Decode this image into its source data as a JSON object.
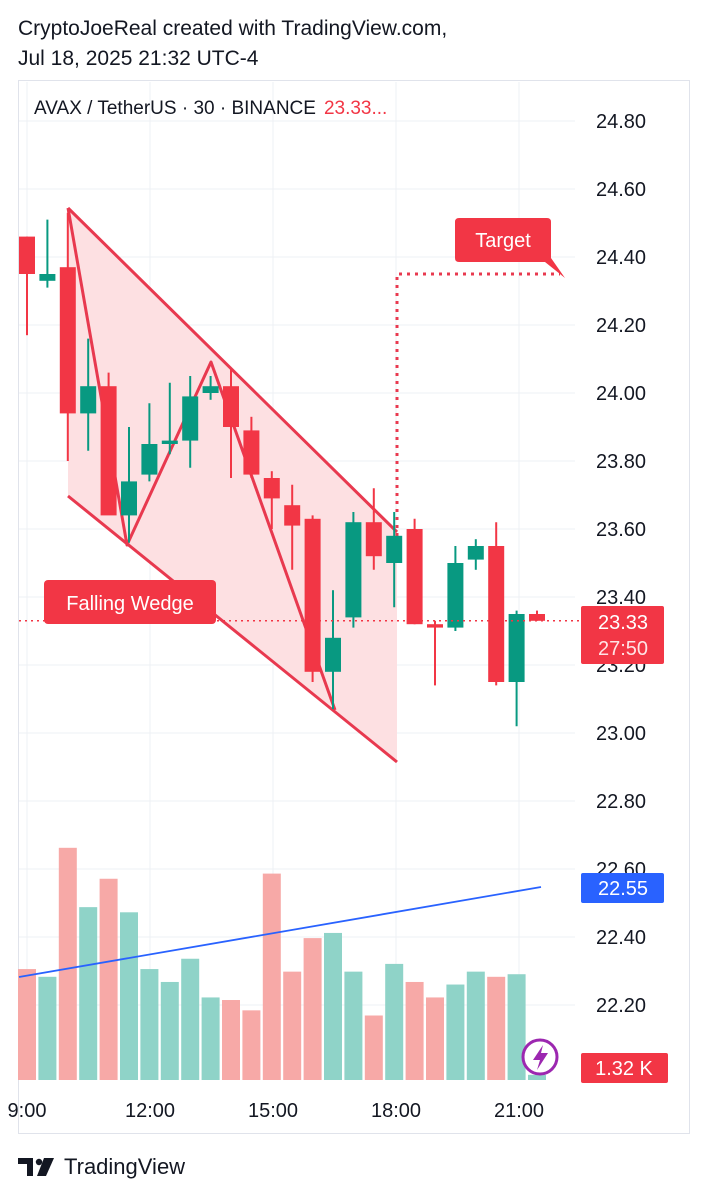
{
  "header": {
    "line1": "CryptoJoeReal created with TradingView.com,",
    "line2": "Jul 18, 2025 21:32 UTC-4"
  },
  "symbol_line": {
    "text": "AVAX / TetherUS · 30 · BINANCE",
    "price": "23.33..."
  },
  "footer": {
    "brand": "TradingView"
  },
  "colors": {
    "up": "#089981",
    "down": "#f23645",
    "up_volume": "#8fd3c8",
    "down_volume": "#f7a9a7",
    "wedge_fill": "#fde0e2",
    "wedge_line": "#e8394f",
    "ma_line": "#2962ff",
    "grid": "#eef0f4",
    "axis_text": "#131722"
  },
  "chart_data": {
    "type": "candlestick",
    "price_axis": {
      "ticks": [
        "24.80",
        "24.60",
        "24.40",
        "24.20",
        "24.00",
        "23.80",
        "23.60",
        "23.40",
        "23.20",
        "23.00",
        "22.80",
        "22.60",
        "22.40",
        "22.20"
      ],
      "range": [
        22.05,
        24.85
      ]
    },
    "time_axis": {
      "labels": [
        "9:00",
        "12:00",
        "15:00",
        "18:00",
        "21:00"
      ]
    },
    "candles": [
      {
        "o": 24.46,
        "h": 24.46,
        "l": 24.17,
        "c": 24.35
      },
      {
        "o": 24.33,
        "h": 24.51,
        "l": 24.31,
        "c": 24.35
      },
      {
        "o": 24.37,
        "h": 24.53,
        "l": 23.8,
        "c": 23.94
      },
      {
        "o": 23.94,
        "h": 24.16,
        "l": 23.83,
        "c": 24.02
      },
      {
        "o": 24.02,
        "h": 24.06,
        "l": 23.65,
        "c": 23.64
      },
      {
        "o": 23.64,
        "h": 23.9,
        "l": 23.56,
        "c": 23.74
      },
      {
        "o": 23.76,
        "h": 23.97,
        "l": 23.74,
        "c": 23.85
      },
      {
        "o": 23.85,
        "h": 24.03,
        "l": 23.82,
        "c": 23.86
      },
      {
        "o": 23.86,
        "h": 24.05,
        "l": 23.78,
        "c": 23.99
      },
      {
        "o": 24.0,
        "h": 24.05,
        "l": 23.98,
        "c": 24.02
      },
      {
        "o": 24.02,
        "h": 24.07,
        "l": 23.75,
        "c": 23.9
      },
      {
        "o": 23.89,
        "h": 23.93,
        "l": 23.75,
        "c": 23.76
      },
      {
        "o": 23.75,
        "h": 23.77,
        "l": 23.6,
        "c": 23.69
      },
      {
        "o": 23.67,
        "h": 23.73,
        "l": 23.48,
        "c": 23.61
      },
      {
        "o": 23.63,
        "h": 23.64,
        "l": 23.15,
        "c": 23.18
      },
      {
        "o": 23.18,
        "h": 23.42,
        "l": 23.07,
        "c": 23.28
      },
      {
        "o": 23.34,
        "h": 23.65,
        "l": 23.31,
        "c": 23.62
      },
      {
        "o": 23.62,
        "h": 23.72,
        "l": 23.48,
        "c": 23.52
      },
      {
        "o": 23.5,
        "h": 23.65,
        "l": 23.37,
        "c": 23.58
      },
      {
        "o": 23.6,
        "h": 23.63,
        "l": 23.32,
        "c": 23.32
      },
      {
        "o": 23.32,
        "h": 23.33,
        "l": 23.14,
        "c": 23.31
      },
      {
        "o": 23.31,
        "h": 23.55,
        "l": 23.3,
        "c": 23.5
      },
      {
        "o": 23.51,
        "h": 23.57,
        "l": 23.48,
        "c": 23.55
      },
      {
        "o": 23.55,
        "h": 23.62,
        "l": 23.14,
        "c": 23.15
      },
      {
        "o": 23.15,
        "h": 23.36,
        "l": 23.02,
        "c": 23.35
      },
      {
        "o": 23.35,
        "h": 23.36,
        "l": 23.33,
        "c": 23.33
      }
    ],
    "volume": [
      {
        "v": 0.43,
        "dir": "down"
      },
      {
        "v": 0.4,
        "dir": "up"
      },
      {
        "v": 0.9,
        "dir": "down"
      },
      {
        "v": 0.67,
        "dir": "up"
      },
      {
        "v": 0.78,
        "dir": "down"
      },
      {
        "v": 0.65,
        "dir": "up"
      },
      {
        "v": 0.43,
        "dir": "up"
      },
      {
        "v": 0.38,
        "dir": "up"
      },
      {
        "v": 0.47,
        "dir": "up"
      },
      {
        "v": 0.32,
        "dir": "up"
      },
      {
        "v": 0.31,
        "dir": "down"
      },
      {
        "v": 0.27,
        "dir": "down"
      },
      {
        "v": 0.8,
        "dir": "down"
      },
      {
        "v": 0.42,
        "dir": "down"
      },
      {
        "v": 0.55,
        "dir": "down"
      },
      {
        "v": 0.57,
        "dir": "up"
      },
      {
        "v": 0.42,
        "dir": "up"
      },
      {
        "v": 0.25,
        "dir": "down"
      },
      {
        "v": 0.45,
        "dir": "up"
      },
      {
        "v": 0.38,
        "dir": "down"
      },
      {
        "v": 0.32,
        "dir": "down"
      },
      {
        "v": 0.37,
        "dir": "up"
      },
      {
        "v": 0.42,
        "dir": "up"
      },
      {
        "v": 0.4,
        "dir": "down"
      },
      {
        "v": 0.41,
        "dir": "up"
      },
      {
        "v": 0.02,
        "dir": "up"
      }
    ],
    "last_price_label": "23.33",
    "countdown_label": "27:50",
    "ma_label": "22.55",
    "volume_label": "1.32 K",
    "annotations": {
      "falling_wedge": "Falling Wedge",
      "target": "Target",
      "target_price": 24.35
    }
  }
}
